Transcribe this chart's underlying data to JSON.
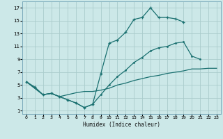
{
  "xlabel": "Humidex (Indice chaleur)",
  "bg_color": "#cce8e8",
  "grid_color": "#aacccc",
  "line_color": "#1a7070",
  "xlim": [
    -0.5,
    23.5
  ],
  "ylim": [
    0.5,
    18
  ],
  "xticks": [
    0,
    1,
    2,
    3,
    4,
    5,
    6,
    7,
    8,
    9,
    10,
    11,
    12,
    13,
    14,
    15,
    16,
    17,
    18,
    19,
    20,
    21,
    22,
    23
  ],
  "yticks": [
    1,
    3,
    5,
    7,
    9,
    11,
    13,
    15,
    17
  ],
  "curve1_x": [
    0,
    1,
    2,
    3,
    4,
    5,
    6,
    7,
    8,
    9,
    10,
    11,
    12,
    13,
    14,
    15,
    16,
    17,
    18,
    19
  ],
  "curve1_y": [
    5.5,
    4.7,
    3.5,
    3.7,
    3.2,
    2.7,
    2.2,
    1.5,
    2.0,
    6.8,
    11.5,
    12.0,
    13.2,
    15.2,
    15.5,
    17.0,
    15.5,
    15.5,
    15.3,
    14.8
  ],
  "curve2_x": [
    0,
    2,
    3,
    4,
    5,
    6,
    7,
    8,
    9,
    10,
    11,
    12,
    13,
    14,
    15,
    16,
    17,
    18,
    19,
    20,
    21
  ],
  "curve2_y": [
    5.5,
    3.5,
    3.7,
    3.2,
    2.7,
    2.2,
    1.5,
    2.0,
    3.5,
    5.0,
    6.3,
    7.3,
    8.5,
    9.3,
    10.3,
    10.8,
    11.0,
    11.5,
    11.7,
    9.5,
    9.0
  ],
  "curve3_x": [
    0,
    2,
    3,
    4,
    5,
    6,
    7,
    8,
    9,
    10,
    11,
    12,
    13,
    14,
    15,
    16,
    17,
    18,
    19,
    20,
    21,
    22,
    23
  ],
  "curve3_y": [
    5.5,
    3.5,
    3.7,
    3.2,
    3.5,
    3.8,
    4.0,
    4.0,
    4.2,
    4.5,
    5.0,
    5.3,
    5.7,
    6.0,
    6.3,
    6.5,
    6.8,
    7.0,
    7.2,
    7.5,
    7.5,
    7.6,
    7.6
  ]
}
